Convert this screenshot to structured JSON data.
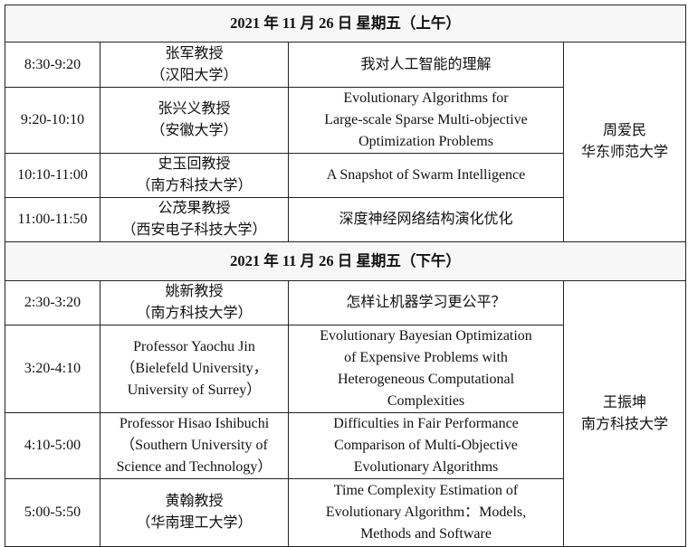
{
  "sessions": [
    {
      "heading": "2021 年 11 月 26 日  星期五（上午）",
      "chair": {
        "name": "周爱民",
        "affiliation": "华东师范大学"
      },
      "rows": [
        {
          "time": "8:30-9:20",
          "speaker": [
            "张军教授",
            "（汉阳大学）"
          ],
          "title": [
            "我对人工智能的理解"
          ]
        },
        {
          "time": "9:20-10:10",
          "speaker": [
            "张兴义教授",
            "（安徽大学）"
          ],
          "title": [
            "Evolutionary Algorithms for",
            "Large-scale Sparse Multi-objective",
            "Optimization Problems"
          ]
        },
        {
          "time": "10:10-11:00",
          "speaker": [
            "史玉回教授",
            "（南方科技大学）"
          ],
          "title": [
            "A Snapshot of Swarm Intelligence"
          ]
        },
        {
          "time": "11:00-11:50",
          "speaker": [
            "公茂果教授",
            "（西安电子科技大学）"
          ],
          "title": [
            "深度神经网络结构演化优化"
          ]
        }
      ]
    },
    {
      "heading": "2021 年 11 月 26 日  星期五（下午）",
      "chair": {
        "name": "王振坤",
        "affiliation": "南方科技大学"
      },
      "rows": [
        {
          "time": "2:30-3:20",
          "speaker": [
            "姚新教授",
            "（南方科技大学）"
          ],
          "title": [
            "怎样让机器学习更公平？"
          ]
        },
        {
          "time": "3:20-4:10",
          "speaker": [
            "Professor Yaochu Jin",
            "（Bielefeld University，",
            "University of Surrey）"
          ],
          "title": [
            "Evolutionary Bayesian Optimization",
            "of Expensive Problems with",
            "Heterogeneous Computational",
            "Complexities"
          ]
        },
        {
          "time": "4:10-5:00",
          "speaker": [
            "Professor Hisao Ishibuchi",
            "（Southern University of",
            "Science and Technology）"
          ],
          "title": [
            "Difficulties in Fair Performance",
            "Comparison of Multi-Objective",
            "Evolutionary Algorithms"
          ]
        },
        {
          "time": "5:00-5:50",
          "speaker": [
            "黄翰教授",
            "（华南理工大学）"
          ],
          "title": [
            "Time Complexity Estimation of",
            "Evolutionary Algorithm：Models,",
            "Methods and Software"
          ]
        }
      ]
    }
  ]
}
